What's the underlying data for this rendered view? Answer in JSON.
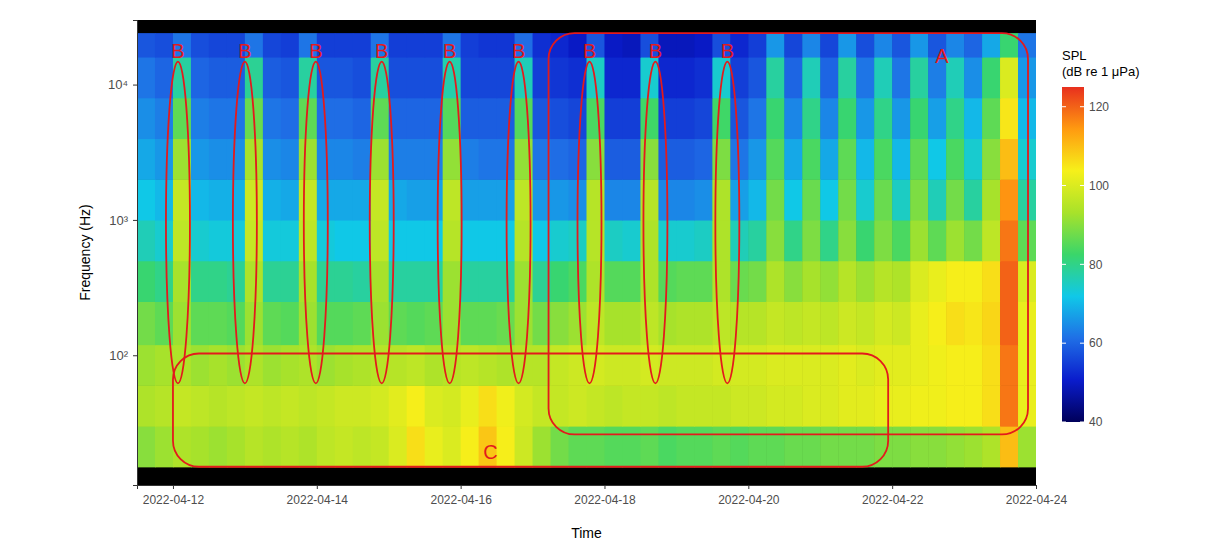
{
  "chart_data": {
    "type": "heatmap",
    "x_label": "Time",
    "y_label": "Frequency (Hz)",
    "log": "y",
    "grid": false,
    "xlim": [
      "2022-04-11T12:00",
      "2022-04-24T00:00"
    ],
    "xticks": [
      "2022-04-12",
      "2022-04-14",
      "2022-04-16",
      "2022-04-18",
      "2022-04-20",
      "2022-04-22",
      "2022-04-24"
    ],
    "ylim": [
      11,
      30000
    ],
    "yticks": [
      {
        "value": 100,
        "label": "10²"
      },
      {
        "value": 1000,
        "label": "10³"
      },
      {
        "value": 10000,
        "label": "10⁴"
      }
    ],
    "x_bins": [
      "2022-04-11T12:00",
      "2022-04-11T18:00",
      "2022-04-12T00:00",
      "2022-04-12T06:00",
      "2022-04-12T12:00",
      "2022-04-12T18:00",
      "2022-04-13T00:00",
      "2022-04-13T06:00",
      "2022-04-13T12:00",
      "2022-04-13T18:00",
      "2022-04-14T00:00",
      "2022-04-14T06:00",
      "2022-04-14T12:00",
      "2022-04-14T18:00",
      "2022-04-15T00:00",
      "2022-04-15T06:00",
      "2022-04-15T12:00",
      "2022-04-15T18:00",
      "2022-04-16T00:00",
      "2022-04-16T06:00",
      "2022-04-16T12:00",
      "2022-04-16T18:00",
      "2022-04-17T00:00",
      "2022-04-17T06:00",
      "2022-04-17T12:00",
      "2022-04-17T18:00",
      "2022-04-18T00:00",
      "2022-04-18T06:00",
      "2022-04-18T12:00",
      "2022-04-18T18:00",
      "2022-04-19T00:00",
      "2022-04-19T06:00",
      "2022-04-19T12:00",
      "2022-04-19T18:00",
      "2022-04-20T00:00",
      "2022-04-20T06:00",
      "2022-04-20T12:00",
      "2022-04-20T18:00",
      "2022-04-21T00:00",
      "2022-04-21T06:00",
      "2022-04-21T12:00",
      "2022-04-21T18:00",
      "2022-04-22T00:00",
      "2022-04-22T06:00",
      "2022-04-22T12:00",
      "2022-04-22T18:00",
      "2022-04-23T00:00",
      "2022-04-23T06:00",
      "2022-04-23T12:00",
      "2022-04-23T18:00",
      "2022-04-24T00:00"
    ],
    "y_bins": [
      15,
      30,
      60,
      120,
      250,
      500,
      1000,
      2000,
      4000,
      8000,
      16000,
      24000
    ],
    "z": [
      [
        90,
        92,
        94,
        93,
        92,
        93,
        95,
        94,
        95,
        94,
        96,
        97,
        96,
        97,
        100,
        106,
        102,
        100,
        104,
        109,
        104,
        98,
        92,
        88,
        86,
        86,
        85,
        85,
        86,
        84,
        85,
        85,
        86,
        85,
        86,
        86,
        87,
        87,
        88,
        88,
        88,
        89,
        89,
        90,
        90,
        91,
        92,
        94,
        110,
        92
      ],
      [
        94,
        95,
        97,
        96,
        95,
        96,
        97,
        96,
        97,
        96,
        97,
        98,
        98,
        99,
        101,
        104,
        100,
        99,
        102,
        106,
        103,
        99,
        97,
        97,
        98,
        97,
        96,
        97,
        97,
        96,
        97,
        97,
        97,
        98,
        98,
        99,
        99,
        100,
        100,
        101,
        101,
        102,
        102,
        103,
        103,
        104,
        104,
        106,
        118,
        102
      ],
      [
        92,
        93,
        94,
        92,
        93,
        92,
        94,
        92,
        93,
        94,
        92,
        93,
        94,
        95,
        95,
        96,
        94,
        95,
        96,
        95,
        94,
        95,
        95,
        97,
        98,
        99,
        98,
        98,
        99,
        98,
        98,
        98,
        99,
        99,
        99,
        100,
        100,
        100,
        100,
        101,
        100,
        101,
        101,
        102,
        103,
        104,
        104,
        106,
        118,
        102
      ],
      [
        88,
        86,
        92,
        86,
        86,
        85,
        92,
        86,
        85,
        92,
        85,
        85,
        86,
        92,
        86,
        85,
        86,
        92,
        86,
        86,
        87,
        92,
        88,
        90,
        92,
        96,
        93,
        93,
        96,
        93,
        94,
        94,
        96,
        95,
        95,
        97,
        96,
        97,
        96,
        98,
        97,
        99,
        98,
        102,
        104,
        106,
        105,
        107,
        120,
        102
      ],
      [
        82,
        80,
        93,
        80,
        80,
        79,
        94,
        79,
        79,
        93,
        79,
        79,
        78,
        93,
        78,
        78,
        78,
        92,
        78,
        78,
        78,
        92,
        79,
        82,
        84,
        94,
        85,
        85,
        94,
        85,
        86,
        86,
        94,
        87,
        88,
        94,
        90,
        93,
        91,
        95,
        92,
        95,
        94,
        100,
        102,
        104,
        104,
        106,
        120,
        100
      ],
      [
        76,
        74,
        96,
        74,
        73,
        73,
        97,
        73,
        73,
        96,
        73,
        72,
        72,
        96,
        72,
        72,
        72,
        95,
        72,
        72,
        72,
        95,
        72,
        74,
        75,
        95,
        75,
        74,
        94,
        74,
        74,
        75,
        94,
        76,
        78,
        90,
        80,
        89,
        80,
        90,
        82,
        89,
        84,
        92,
        86,
        92,
        88,
        96,
        118,
        86
      ],
      [
        72,
        70,
        97,
        70,
        69,
        69,
        98,
        69,
        68,
        97,
        68,
        68,
        68,
        97,
        68,
        67,
        67,
        96,
        67,
        67,
        67,
        96,
        66,
        66,
        65,
        95,
        64,
        64,
        95,
        64,
        64,
        65,
        94,
        67,
        70,
        88,
        72,
        87,
        72,
        88,
        74,
        87,
        75,
        89,
        76,
        88,
        78,
        93,
        115,
        78
      ],
      [
        68,
        66,
        92,
        66,
        65,
        65,
        93,
        65,
        64,
        92,
        64,
        64,
        63,
        92,
        63,
        63,
        63,
        91,
        63,
        62,
        62,
        91,
        62,
        61,
        60,
        90,
        59,
        59,
        90,
        59,
        59,
        60,
        89,
        62,
        66,
        85,
        68,
        84,
        68,
        86,
        70,
        84,
        70,
        86,
        72,
        84,
        74,
        90,
        110,
        74
      ],
      [
        65,
        63,
        86,
        63,
        62,
        62,
        87,
        62,
        61,
        86,
        61,
        61,
        60,
        86,
        60,
        60,
        60,
        85,
        59,
        59,
        59,
        85,
        58,
        57,
        56,
        84,
        55,
        55,
        83,
        55,
        55,
        56,
        83,
        58,
        62,
        82,
        64,
        80,
        64,
        82,
        66,
        80,
        66,
        82,
        67,
        80,
        70,
        86,
        105,
        70
      ],
      [
        62,
        60,
        78,
        60,
        59,
        59,
        79,
        59,
        58,
        78,
        58,
        58,
        57,
        78,
        57,
        57,
        57,
        77,
        56,
        56,
        56,
        76,
        55,
        54,
        53,
        75,
        52,
        52,
        74,
        52,
        52,
        53,
        74,
        55,
        58,
        78,
        60,
        76,
        60,
        78,
        62,
        76,
        62,
        78,
        63,
        76,
        65,
        82,
        100,
        66
      ],
      [
        58,
        57,
        62,
        57,
        56,
        56,
        62,
        56,
        55,
        62,
        55,
        55,
        55,
        62,
        55,
        55,
        55,
        62,
        55,
        54,
        54,
        61,
        53,
        52,
        50,
        58,
        50,
        49,
        57,
        49,
        49,
        50,
        57,
        52,
        55,
        66,
        56,
        64,
        56,
        66,
        57,
        64,
        58,
        66,
        58,
        64,
        60,
        68,
        82,
        62
      ]
    ],
    "colorbar": {
      "title": [
        "SPL",
        "(dB re 1 μPa)"
      ],
      "range": [
        40,
        125
      ],
      "ticks": [
        40,
        60,
        80,
        100,
        120
      ]
    },
    "annotations": {
      "boxes": [
        {
          "label": "A",
          "x": [
            "2022-04-17T05:20",
            "2022-04-23T21:20"
          ],
          "y": [
            26,
            24000
          ]
        },
        {
          "label": "C",
          "x": [
            "2022-04-12T00:00",
            "2022-04-21T22:40"
          ],
          "y": [
            15,
            103
          ]
        }
      ],
      "ellipses": [
        {
          "label": "B",
          "x": [
            "2022-04-11T21:40",
            "2022-04-12T05:40"
          ],
          "y": [
            62,
            14800
          ]
        },
        {
          "label": "B",
          "x": [
            "2022-04-12T20:00",
            "2022-04-13T04:00"
          ],
          "y": [
            62,
            14800
          ]
        },
        {
          "label": "B",
          "x": [
            "2022-04-13T19:40",
            "2022-04-14T03:40"
          ],
          "y": [
            62,
            14800
          ]
        },
        {
          "label": "B",
          "x": [
            "2022-04-14T17:40",
            "2022-04-15T01:40"
          ],
          "y": [
            62,
            14800
          ]
        },
        {
          "label": "B",
          "x": [
            "2022-04-15T16:20",
            "2022-04-16T00:20"
          ],
          "y": [
            62,
            14800
          ]
        },
        {
          "label": "B",
          "x": [
            "2022-04-16T15:20",
            "2022-04-16T23:20"
          ],
          "y": [
            62,
            14800
          ]
        },
        {
          "label": "B",
          "x": [
            "2022-04-17T15:00",
            "2022-04-17T23:00"
          ],
          "y": [
            62,
            14800
          ]
        },
        {
          "label": "B",
          "x": [
            "2022-04-18T13:00",
            "2022-04-18T21:00"
          ],
          "y": [
            62,
            14800
          ]
        },
        {
          "label": "B",
          "x": [
            "2022-04-19T13:00",
            "2022-04-19T21:00"
          ],
          "y": [
            62,
            14800
          ]
        }
      ]
    }
  }
}
